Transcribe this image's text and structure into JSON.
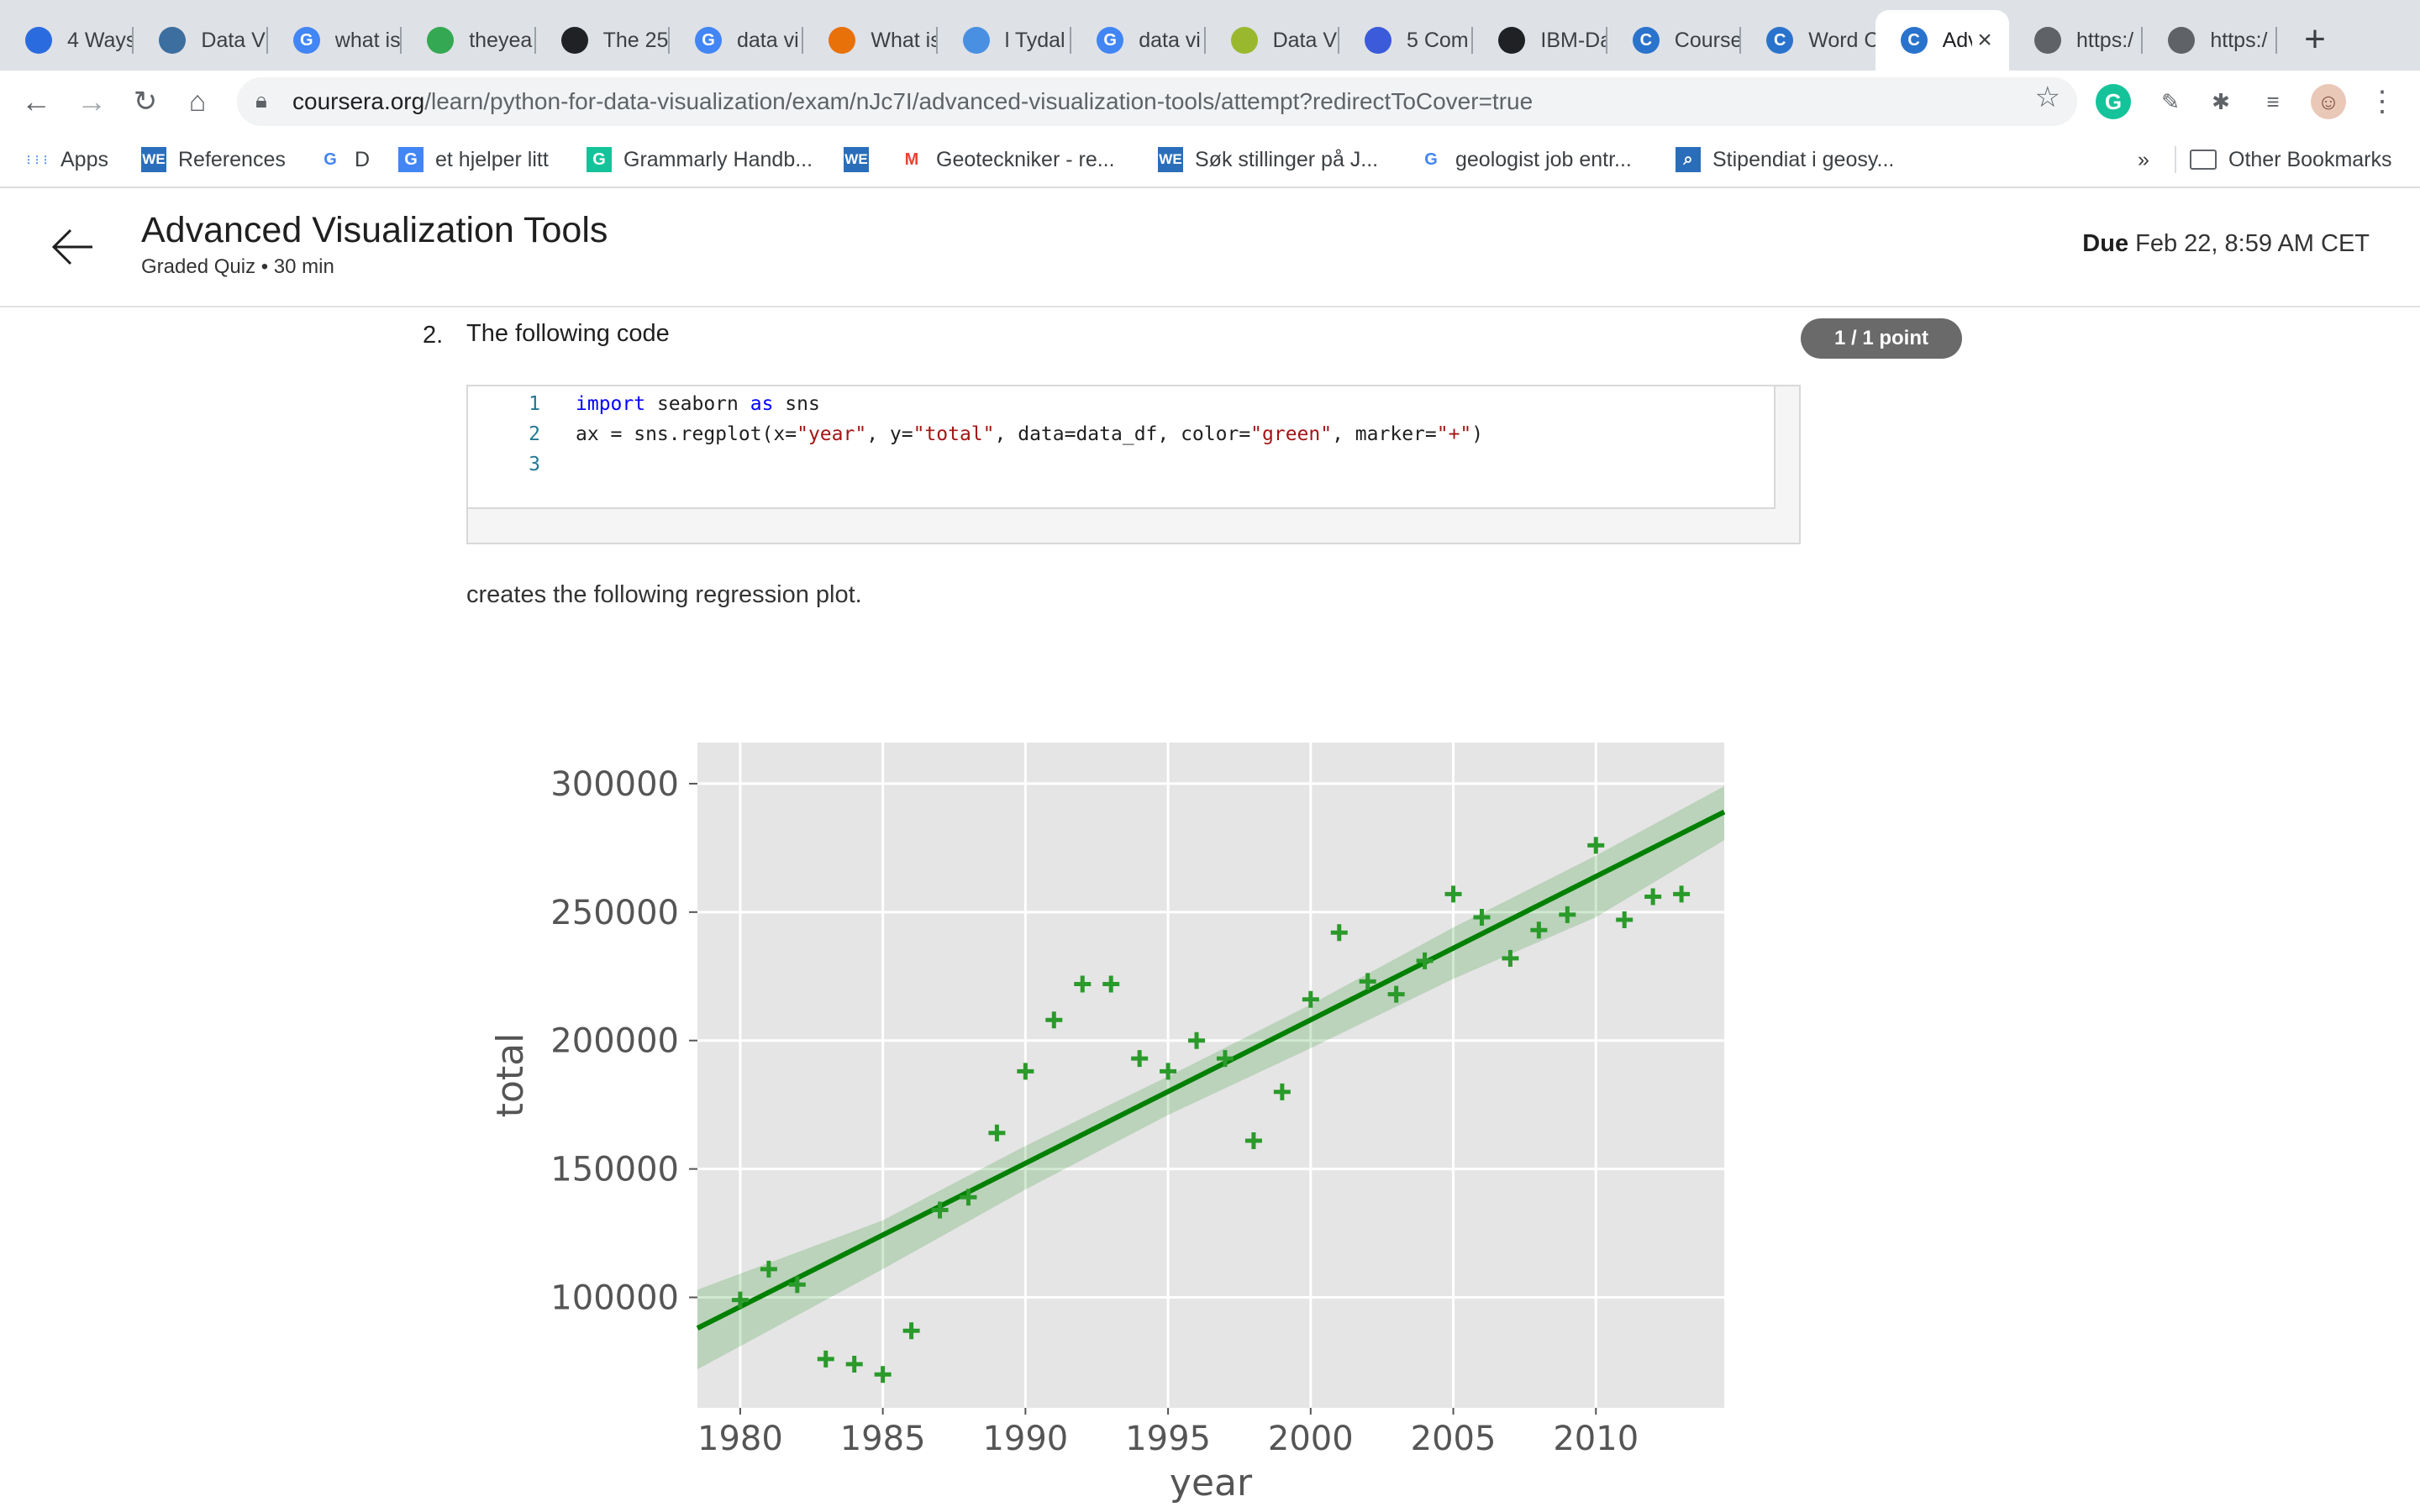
{
  "browser": {
    "tabs": [
      {
        "label": "4 Ways",
        "icon": "blue-feather-icon",
        "color": "#2b6be0"
      },
      {
        "label": "Data Vi",
        "icon": "globe-icon",
        "color": "#3c6e9f"
      },
      {
        "label": "what is",
        "icon": "google-icon",
        "color": "#4285f4"
      },
      {
        "label": "theyea",
        "icon": "cube-icon",
        "color": "#34a853"
      },
      {
        "label": "The 25",
        "icon": "dashboard-icon",
        "color": "#202124"
      },
      {
        "label": "data vi",
        "icon": "google-icon",
        "color": "#4285f4"
      },
      {
        "label": "What is",
        "icon": "network-icon",
        "color": "#e8710a"
      },
      {
        "label": "l Tydal",
        "icon": "nrk-icon",
        "color": "#4a90e2"
      },
      {
        "label": "data vi",
        "icon": "google-icon",
        "color": "#4285f4"
      },
      {
        "label": "Data V",
        "icon": "bars-icon",
        "color": "#9ab82e"
      },
      {
        "label": "5 Com",
        "icon": "stripes-icon",
        "color": "#3b5bdb"
      },
      {
        "label": "IBM-Da",
        "icon": "github-icon",
        "color": "#202124"
      },
      {
        "label": "Course",
        "icon": "coursera-icon",
        "color": "#2a73cc"
      },
      {
        "label": "Word C",
        "icon": "coursera-icon",
        "color": "#2a73cc"
      },
      {
        "label": "Adv",
        "icon": "coursera-icon",
        "color": "#2a73cc"
      },
      {
        "label": "https:/",
        "icon": "globe-gray-icon",
        "color": "#5f6368"
      },
      {
        "label": "https:/",
        "icon": "globe-gray-icon",
        "color": "#5f6368"
      }
    ],
    "url_host": "coursera.org",
    "url_path": "/learn/python-for-data-visualization/exam/nJc7I/advanced-visualization-tools/attempt?redirectToCover=true",
    "bookmarks": [
      {
        "label": "Apps",
        "icon": "apps-grid-icon"
      },
      {
        "label": "References",
        "icon": "we-icon"
      },
      {
        "label": "D",
        "icon": "google-icon"
      },
      {
        "label": "et hjelper litt",
        "icon": "translate-icon"
      },
      {
        "label": "Grammarly Handb...",
        "icon": "grammarly-icon"
      },
      {
        "label": "",
        "icon": "we-icon"
      },
      {
        "label": "Geoteckniker - re...",
        "icon": "gmail-icon"
      },
      {
        "label": "Søk stillinger på J...",
        "icon": "we-icon"
      },
      {
        "label": "geologist job entr...",
        "icon": "google-icon"
      },
      {
        "label": "Stipendiat i geosy...",
        "icon": "search-box-icon"
      }
    ],
    "overflow": "»",
    "other_bookmarks": "Other Bookmarks"
  },
  "header": {
    "title": "Advanced Visualization Tools",
    "subtitle": "Graded Quiz • 30 min",
    "due_label": "Due",
    "due_value": "Feb 22, 8:59 AM CET"
  },
  "question": {
    "number": "2.",
    "text": "The following code",
    "points": "1 / 1 point",
    "code_lines": [
      {
        "num": "1",
        "parts": [
          {
            "t": "import",
            "c": "kw"
          },
          {
            "t": " seaborn ",
            "c": ""
          },
          {
            "t": "as",
            "c": "kw"
          },
          {
            "t": " sns",
            "c": ""
          }
        ]
      },
      {
        "num": "2",
        "parts": [
          {
            "t": "ax = sns.regplot(x=",
            "c": ""
          },
          {
            "t": "\"year\"",
            "c": "st"
          },
          {
            "t": ", y=",
            "c": ""
          },
          {
            "t": "\"total\"",
            "c": "st"
          },
          {
            "t": ", data=data_df, color=",
            "c": ""
          },
          {
            "t": "\"green\"",
            "c": "st"
          },
          {
            "t": ", marker=",
            "c": ""
          },
          {
            "t": "\"+\"",
            "c": "st"
          },
          {
            "t": ")",
            "c": ""
          }
        ]
      },
      {
        "num": "3",
        "parts": []
      }
    ],
    "caption": "creates the following regression plot."
  },
  "chart_data": {
    "type": "scatter",
    "title": "",
    "xlabel": "year",
    "ylabel": "total",
    "xlim": [
      1978.5,
      2014.5
    ],
    "ylim": [
      57000,
      316000
    ],
    "xticks": [
      1980,
      1985,
      1990,
      1995,
      2000,
      2005,
      2010
    ],
    "yticks": [
      100000,
      150000,
      200000,
      250000,
      300000
    ],
    "grid": true,
    "marker": "+",
    "color": "#008000",
    "x": [
      1980,
      1981,
      1982,
      1983,
      1984,
      1985,
      1986,
      1987,
      1988,
      1989,
      1990,
      1991,
      1992,
      1993,
      1994,
      1995,
      1996,
      1997,
      1998,
      1999,
      2000,
      2001,
      2002,
      2003,
      2004,
      2005,
      2006,
      2007,
      2008,
      2009,
      2010,
      2011,
      2012,
      2013
    ],
    "y": [
      99000,
      111000,
      105000,
      76000,
      74000,
      70000,
      87000,
      134000,
      139000,
      164000,
      188000,
      208000,
      222000,
      222000,
      193000,
      188000,
      200000,
      193000,
      161000,
      180000,
      216000,
      242000,
      223000,
      218000,
      231000,
      257000,
      248000,
      232000,
      243000,
      249000,
      276000,
      247000,
      256000,
      257000
    ],
    "regression": {
      "x": [
        1978.5,
        2014.5
      ],
      "y": [
        88000,
        289000
      ]
    },
    "ci_band": {
      "x": [
        1978.5,
        1985,
        1990,
        1995,
        2000,
        2005,
        2010,
        2014.5
      ],
      "upper": [
        103000,
        130000,
        159000,
        186000,
        214000,
        244000,
        272000,
        299000
      ],
      "lower": [
        72000,
        111000,
        142000,
        171000,
        197000,
        224000,
        248000,
        278000
      ]
    }
  }
}
